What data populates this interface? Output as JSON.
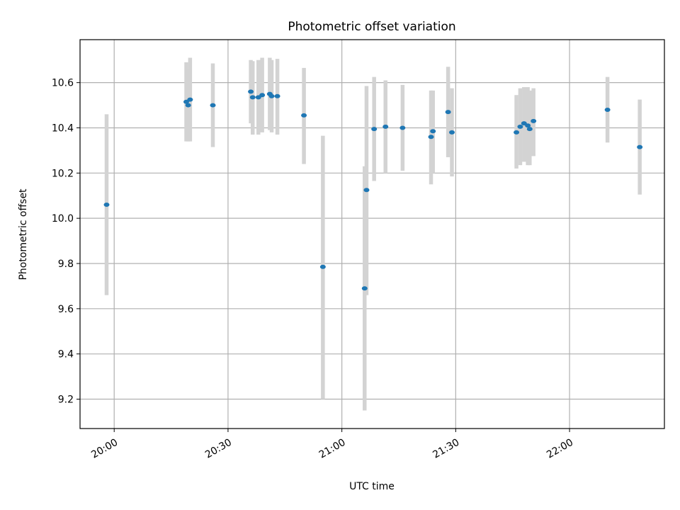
{
  "chart_data": {
    "type": "scatter",
    "title": "Photometric offset variation",
    "xlabel": "UTC time",
    "ylabel": "Photometric offset",
    "x_axis_type": "time",
    "xlim": [
      "19:51",
      "22:25"
    ],
    "ylim": [
      9.07,
      10.79
    ],
    "x_ticks": [
      "20:00",
      "20:30",
      "21:00",
      "21:30",
      "22:00"
    ],
    "y_ticks": [
      9.2,
      9.4,
      9.6,
      9.8,
      10.0,
      10.2,
      10.4,
      10.6
    ],
    "grid": true,
    "marker_color": "#1f77b4",
    "errorbar_color": "#d3d3d3",
    "points": [
      {
        "time": "19:58",
        "value": 10.06,
        "err_low": 9.66,
        "err_high": 10.46
      },
      {
        "time": "20:19",
        "value": 10.515,
        "err_low": 10.34,
        "err_high": 10.69
      },
      {
        "time": "20:19.5",
        "value": 10.5,
        "err_low": 10.34,
        "err_high": 10.66
      },
      {
        "time": "20:20",
        "value": 10.525,
        "err_low": 10.34,
        "err_high": 10.71
      },
      {
        "time": "20:26",
        "value": 10.5,
        "err_low": 10.315,
        "err_high": 10.685
      },
      {
        "time": "20:36",
        "value": 10.56,
        "err_low": 10.42,
        "err_high": 10.7
      },
      {
        "time": "20:36.5",
        "value": 10.535,
        "err_low": 10.37,
        "err_high": 10.695
      },
      {
        "time": "20:38",
        "value": 10.535,
        "err_low": 10.37,
        "err_high": 10.7
      },
      {
        "time": "20:39",
        "value": 10.545,
        "err_low": 10.38,
        "err_high": 10.71
      },
      {
        "time": "20:41",
        "value": 10.55,
        "err_low": 10.39,
        "err_high": 10.71
      },
      {
        "time": "20:41.5",
        "value": 10.54,
        "err_low": 10.38,
        "err_high": 10.7
      },
      {
        "time": "20:43",
        "value": 10.54,
        "err_low": 10.37,
        "err_high": 10.705
      },
      {
        "time": "20:50",
        "value": 10.455,
        "err_low": 10.24,
        "err_high": 10.665
      },
      {
        "time": "20:55",
        "value": 9.785,
        "err_low": 9.2,
        "err_high": 10.365
      },
      {
        "time": "21:06",
        "value": 9.69,
        "err_low": 9.15,
        "err_high": 10.23
      },
      {
        "time": "21:06.5",
        "value": 10.125,
        "err_low": 9.66,
        "err_high": 10.585
      },
      {
        "time": "21:08.5",
        "value": 10.395,
        "err_low": 10.165,
        "err_high": 10.625
      },
      {
        "time": "21:11.5",
        "value": 10.405,
        "err_low": 10.2,
        "err_high": 10.61
      },
      {
        "time": "21:16",
        "value": 10.4,
        "err_low": 10.21,
        "err_high": 10.59
      },
      {
        "time": "21:23.5",
        "value": 10.36,
        "err_low": 10.15,
        "err_high": 10.565
      },
      {
        "time": "21:24",
        "value": 10.385,
        "err_low": 10.2,
        "err_high": 10.565
      },
      {
        "time": "21:28",
        "value": 10.47,
        "err_low": 10.27,
        "err_high": 10.67
      },
      {
        "time": "21:29",
        "value": 10.38,
        "err_low": 10.185,
        "err_high": 10.575
      },
      {
        "time": "21:46",
        "value": 10.38,
        "err_low": 10.22,
        "err_high": 10.545
      },
      {
        "time": "21:47",
        "value": 10.405,
        "err_low": 10.235,
        "err_high": 10.575
      },
      {
        "time": "21:48",
        "value": 10.42,
        "err_low": 10.25,
        "err_high": 10.58
      },
      {
        "time": "21:49",
        "value": 10.41,
        "err_low": 10.235,
        "err_high": 10.58
      },
      {
        "time": "21:49.5",
        "value": 10.395,
        "err_low": 10.235,
        "err_high": 10.565
      },
      {
        "time": "21:50.5",
        "value": 10.43,
        "err_low": 10.275,
        "err_high": 10.575
      },
      {
        "time": "22:10",
        "value": 10.48,
        "err_low": 10.335,
        "err_high": 10.625
      },
      {
        "time": "22:18.5",
        "value": 10.315,
        "err_low": 10.105,
        "err_high": 10.525
      }
    ]
  }
}
